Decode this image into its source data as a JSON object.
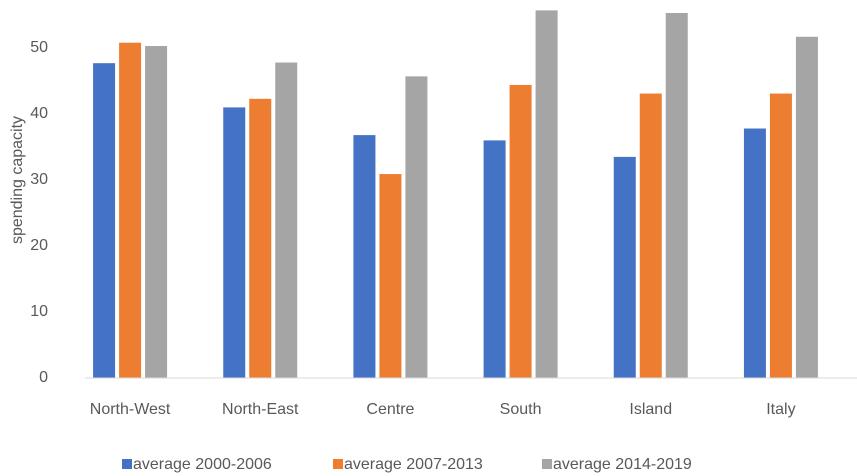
{
  "chart_data": {
    "type": "bar",
    "y_label": "spending capacity",
    "categories": [
      "North-West",
      "North-East",
      "Centre",
      "South",
      "Island",
      "Italy"
    ],
    "series": [
      {
        "name": "average 2000-2006",
        "color": "#4472c4",
        "values": [
          47.7,
          41.0,
          36.8,
          36.0,
          33.5,
          37.8
        ]
      },
      {
        "name": "average 2007-2013",
        "color": "#ed7d31",
        "values": [
          50.8,
          42.3,
          30.9,
          44.4,
          43.1,
          43.1
        ]
      },
      {
        "name": "average 2014-2019",
        "color": "#a5a5a5",
        "values": [
          50.3,
          47.8,
          45.7,
          55.7,
          55.3,
          51.7
        ]
      }
    ],
    "ylim": [
      0,
      56
    ],
    "yticks": [
      0,
      10,
      20,
      30,
      40,
      50
    ],
    "grid": false,
    "legend": "bottom"
  }
}
